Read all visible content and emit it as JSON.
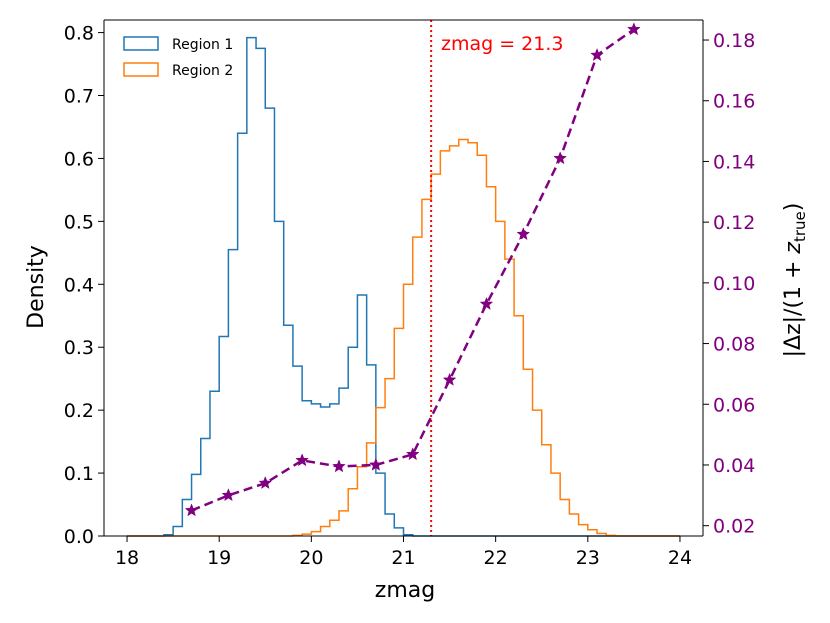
{
  "chart_data": {
    "type": "histogram-step",
    "xlabel": "zmag",
    "ylabel_left": "Density",
    "ylabel_right": "|Δz|/(1 + z_true)",
    "ylabel_right_parts": {
      "prefix": "|Δz|/(1 + ",
      "var": "z",
      "sub": "true",
      "suffix": ")"
    },
    "xlim": [
      17.75,
      24.25
    ],
    "ylim_left": [
      0.0,
      0.82
    ],
    "ylim_right": [
      0.0166,
      0.1866
    ],
    "x_ticks": [
      18,
      19,
      20,
      21,
      22,
      23,
      24
    ],
    "x_tick_labels": [
      "18",
      "19",
      "20",
      "21",
      "22",
      "23",
      "24"
    ],
    "y_left_ticks": [
      0.0,
      0.1,
      0.2,
      0.3,
      0.4,
      0.5,
      0.6,
      0.7,
      0.8
    ],
    "y_left_tick_labels": [
      "0.0",
      "0.1",
      "0.2",
      "0.3",
      "0.4",
      "0.5",
      "0.6",
      "0.7",
      "0.8"
    ],
    "y_right_ticks": [
      0.02,
      0.04,
      0.06,
      0.08,
      0.1,
      0.12,
      0.14,
      0.16,
      0.18
    ],
    "y_right_tick_labels": [
      "0.02",
      "0.04",
      "0.06",
      "0.08",
      "0.10",
      "0.12",
      "0.14",
      "0.16",
      "0.18"
    ],
    "colors": {
      "region1": "#1f77b4",
      "region2": "#ff7f0e",
      "scatter": "#800080",
      "vline": "#ff0000",
      "right_axis_text": "#800080"
    },
    "bin_edges_start": 18.0,
    "bin_width": 0.1,
    "series": [
      {
        "name": "Region 1",
        "color": "#1f77b4",
        "values": [
          0,
          0,
          0,
          0,
          0.002,
          0.015,
          0.058,
          0.098,
          0.155,
          0.23,
          0.317,
          0.455,
          0.64,
          0.792,
          0.775,
          0.68,
          0.5,
          0.335,
          0.27,
          0.215,
          0.21,
          0.205,
          0.21,
          0.235,
          0.3,
          0.383,
          0.272,
          0.1,
          0.035,
          0.013,
          0.002,
          0,
          0,
          0,
          0,
          0,
          0,
          0,
          0,
          0,
          0,
          0,
          0,
          0,
          0,
          0,
          0,
          0,
          0,
          0,
          0,
          0,
          0,
          0,
          0,
          0,
          0,
          0,
          0,
          0
        ]
      },
      {
        "name": "Region 2",
        "color": "#ff7f0e",
        "values": [
          0,
          0,
          0,
          0,
          0,
          0,
          0,
          0,
          0,
          0,
          0,
          0,
          0,
          0,
          0,
          0,
          0,
          0,
          0.001,
          0.003,
          0.007,
          0.015,
          0.025,
          0.04,
          0.075,
          0.11,
          0.148,
          0.204,
          0.25,
          0.33,
          0.4,
          0.475,
          0.535,
          0.575,
          0.612,
          0.62,
          0.63,
          0.625,
          0.605,
          0.555,
          0.5,
          0.44,
          0.35,
          0.265,
          0.2,
          0.145,
          0.1,
          0.058,
          0.035,
          0.018,
          0.01,
          0.004,
          0.001,
          0,
          0,
          0,
          0,
          0,
          0,
          0
        ]
      }
    ],
    "scatter": {
      "name": "|Δz|/(1 + z_true)",
      "x": [
        18.7,
        19.1,
        19.5,
        19.9,
        20.3,
        20.7,
        21.1,
        21.5,
        21.9,
        22.3,
        22.7,
        23.1,
        23.5
      ],
      "y": [
        0.025,
        0.03,
        0.034,
        0.0415,
        0.0395,
        0.04,
        0.0435,
        0.068,
        0.093,
        0.116,
        0.141,
        0.175,
        0.1835
      ]
    },
    "vline": {
      "x": 21.3,
      "label": "zmag = 21.3"
    },
    "legend": {
      "position": "top-left",
      "entries": [
        "Region 1",
        "Region 2"
      ]
    }
  }
}
